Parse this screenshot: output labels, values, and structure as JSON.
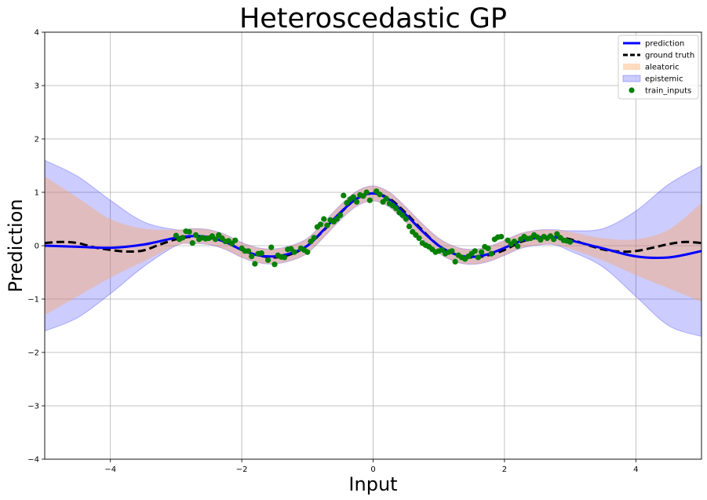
{
  "chart_data": {
    "type": "line",
    "title": "Heteroscedastic GP",
    "xlabel": "Input",
    "ylabel": "Prediction",
    "xlim": [
      -5,
      5
    ],
    "ylim": [
      -4,
      4
    ],
    "xticks": [
      -4,
      -2,
      0,
      2,
      4
    ],
    "xtick_labels": [
      "−4",
      "−2",
      "0",
      "2",
      "4"
    ],
    "yticks": [
      -4,
      -3,
      -2,
      -1,
      0,
      1,
      2,
      3,
      4
    ],
    "ytick_labels": [
      "−4",
      "−3",
      "−2",
      "−1",
      "0",
      "1",
      "2",
      "3",
      "4"
    ],
    "grid": true,
    "legend_position": "top-right",
    "legend": [
      "prediction",
      "ground truth",
      "aleatoric",
      "epistemic",
      "train_inputs"
    ],
    "colors": {
      "prediction": "#0000ff",
      "ground_truth": "#000000",
      "aleatoric": "#ffa560",
      "epistemic": "#0000ff",
      "train_inputs": "#008000"
    },
    "series": [
      {
        "name": "prediction",
        "x": [
          -5.0,
          -4.5,
          -4.0,
          -3.5,
          -3.0,
          -2.75,
          -2.5,
          -2.25,
          -2.0,
          -1.75,
          -1.5,
          -1.25,
          -1.0,
          -0.75,
          -0.5,
          -0.25,
          0.0,
          0.25,
          0.5,
          0.75,
          1.0,
          1.25,
          1.5,
          1.75,
          2.0,
          2.25,
          2.5,
          2.75,
          3.0,
          3.5,
          4.0,
          4.5,
          5.0
        ],
        "y": [
          0.0,
          -0.02,
          -0.04,
          0.02,
          0.15,
          0.18,
          0.16,
          0.07,
          -0.08,
          -0.18,
          -0.2,
          -0.14,
          0.0,
          0.3,
          0.62,
          0.88,
          0.98,
          0.86,
          0.58,
          0.27,
          0.0,
          -0.16,
          -0.21,
          -0.16,
          -0.04,
          0.09,
          0.15,
          0.16,
          0.1,
          -0.05,
          -0.2,
          -0.22,
          -0.1
        ]
      },
      {
        "name": "ground truth",
        "x": [
          -5.0,
          -4.75,
          -4.5,
          -4.25,
          -4.0,
          -3.75,
          -3.5,
          -3.25,
          -3.0,
          -2.75,
          -2.5,
          -2.25,
          -2.0,
          -1.75,
          -1.5,
          -1.25,
          -1.0,
          -0.75,
          -0.5,
          -0.25,
          0.0,
          0.25,
          0.5,
          0.75,
          1.0,
          1.25,
          1.5,
          1.75,
          2.0,
          2.25,
          2.5,
          2.75,
          3.0,
          3.25,
          3.5,
          3.75,
          4.0,
          4.25,
          4.5,
          4.75,
          5.0
        ],
        "y": [
          0.05,
          0.07,
          0.05,
          -0.03,
          -0.08,
          -0.11,
          -0.09,
          0.02,
          0.12,
          0.17,
          0.15,
          0.07,
          -0.08,
          -0.18,
          -0.22,
          -0.16,
          0.0,
          0.29,
          0.61,
          0.88,
          0.98,
          0.88,
          0.61,
          0.29,
          0.0,
          -0.16,
          -0.22,
          -0.18,
          -0.08,
          0.07,
          0.15,
          0.17,
          0.12,
          0.02,
          -0.07,
          -0.11,
          -0.1,
          -0.04,
          0.03,
          0.07,
          0.05
        ]
      },
      {
        "name": "aleatoric",
        "x": [
          -5.0,
          -4.5,
          -4.0,
          -3.5,
          -3.0,
          -2.75,
          -2.5,
          -2.25,
          -2.0,
          -1.75,
          -1.5,
          -1.25,
          -1.0,
          -0.75,
          -0.5,
          -0.25,
          0.0,
          0.25,
          0.5,
          0.75,
          1.0,
          1.25,
          1.5,
          1.75,
          2.0,
          2.25,
          2.5,
          2.75,
          3.0,
          3.5,
          4.0,
          4.5,
          5.0
        ],
        "upper": [
          1.3,
          0.9,
          0.5,
          0.32,
          0.3,
          0.32,
          0.3,
          0.21,
          0.06,
          -0.04,
          -0.06,
          0.0,
          0.14,
          0.44,
          0.76,
          1.02,
          1.12,
          1.0,
          0.72,
          0.41,
          0.14,
          -0.02,
          -0.07,
          -0.02,
          0.1,
          0.23,
          0.29,
          0.3,
          0.26,
          0.14,
          0.12,
          0.3,
          0.8
        ],
        "lower": [
          -1.3,
          -0.95,
          -0.6,
          -0.3,
          0.0,
          0.04,
          0.02,
          -0.07,
          -0.22,
          -0.32,
          -0.34,
          -0.28,
          -0.14,
          0.16,
          0.48,
          0.74,
          0.84,
          0.72,
          0.44,
          0.13,
          -0.14,
          -0.3,
          -0.35,
          -0.3,
          -0.18,
          -0.05,
          0.01,
          0.02,
          -0.06,
          -0.28,
          -0.55,
          -0.8,
          -1.05
        ]
      },
      {
        "name": "epistemic",
        "x": [
          -5.0,
          -4.5,
          -4.0,
          -3.5,
          -3.0,
          -2.75,
          -2.5,
          -2.25,
          -2.0,
          -1.75,
          -1.5,
          -1.25,
          -1.0,
          -0.75,
          -0.5,
          -0.25,
          0.0,
          0.25,
          0.5,
          0.75,
          1.0,
          1.25,
          1.5,
          1.75,
          2.0,
          2.25,
          2.5,
          2.75,
          3.0,
          3.5,
          4.0,
          4.5,
          5.0
        ],
        "upper": [
          1.6,
          1.3,
          0.85,
          0.45,
          0.3,
          0.32,
          0.3,
          0.21,
          0.06,
          -0.04,
          -0.06,
          0.0,
          0.14,
          0.44,
          0.76,
          1.02,
          1.12,
          1.0,
          0.72,
          0.41,
          0.14,
          -0.02,
          -0.07,
          -0.02,
          0.1,
          0.23,
          0.29,
          0.3,
          0.28,
          0.32,
          0.65,
          1.15,
          1.5
        ],
        "lower": [
          -1.6,
          -1.35,
          -0.9,
          -0.4,
          0.0,
          0.04,
          0.02,
          -0.07,
          -0.22,
          -0.32,
          -0.34,
          -0.28,
          -0.14,
          0.16,
          0.48,
          0.74,
          0.84,
          0.72,
          0.44,
          0.13,
          -0.14,
          -0.3,
          -0.35,
          -0.3,
          -0.18,
          -0.05,
          0.01,
          0.02,
          -0.1,
          -0.4,
          -0.95,
          -1.5,
          -1.7
        ]
      },
      {
        "name": "train_inputs",
        "x": [
          -3.0,
          -2.95,
          -2.9,
          -2.85,
          -2.8,
          -2.75,
          -2.7,
          -2.65,
          -2.6,
          -2.55,
          -2.5,
          -2.45,
          -2.4,
          -2.35,
          -2.3,
          -2.25,
          -2.2,
          -2.15,
          -2.1,
          -2.0,
          -1.95,
          -1.9,
          -1.85,
          -1.8,
          -1.75,
          -1.7,
          -1.6,
          -1.55,
          -1.5,
          -1.45,
          -1.4,
          -1.35,
          -1.3,
          -1.25,
          -1.2,
          -1.1,
          -1.05,
          -1.0,
          -0.95,
          -0.9,
          -0.85,
          -0.8,
          -0.75,
          -0.7,
          -0.65,
          -0.6,
          -0.55,
          -0.5,
          -0.45,
          -0.4,
          -0.35,
          -0.3,
          -0.25,
          -0.2,
          -0.15,
          -0.1,
          -0.05,
          0.05,
          0.1,
          0.15,
          0.2,
          0.25,
          0.3,
          0.35,
          0.4,
          0.45,
          0.5,
          0.55,
          0.6,
          0.65,
          0.7,
          0.75,
          0.8,
          0.85,
          0.9,
          0.95,
          1.0,
          1.05,
          1.1,
          1.15,
          1.2,
          1.25,
          1.3,
          1.35,
          1.4,
          1.45,
          1.5,
          1.55,
          1.6,
          1.65,
          1.7,
          1.75,
          1.8,
          1.85,
          1.9,
          1.95,
          2.05,
          2.1,
          2.15,
          2.2,
          2.25,
          2.3,
          2.35,
          2.4,
          2.45,
          2.5,
          2.55,
          2.6,
          2.65,
          2.7,
          2.75,
          2.8,
          2.85,
          2.9,
          2.95,
          3.0
        ],
        "y": [
          0.19,
          0.12,
          0.15,
          0.27,
          0.26,
          0.05,
          0.2,
          0.12,
          0.15,
          0.13,
          0.14,
          0.18,
          0.12,
          0.2,
          0.14,
          0.08,
          0.09,
          0.04,
          0.1,
          -0.05,
          -0.1,
          -0.1,
          -0.2,
          -0.34,
          -0.15,
          -0.14,
          -0.27,
          -0.03,
          -0.35,
          -0.18,
          -0.21,
          -0.22,
          -0.07,
          -0.06,
          -0.12,
          -0.05,
          -0.08,
          -0.12,
          0.08,
          0.15,
          0.35,
          0.4,
          0.5,
          0.38,
          0.48,
          0.45,
          0.5,
          0.57,
          0.94,
          0.8,
          0.87,
          0.91,
          0.82,
          0.95,
          0.93,
          1.0,
          0.85,
          1.02,
          0.96,
          0.82,
          0.88,
          0.79,
          0.75,
          0.7,
          0.62,
          0.57,
          0.5,
          0.36,
          0.26,
          0.2,
          0.14,
          0.05,
          0.01,
          -0.02,
          -0.07,
          -0.12,
          -0.1,
          -0.08,
          -0.15,
          -0.12,
          -0.1,
          -0.3,
          -0.18,
          -0.22,
          -0.25,
          -0.2,
          -0.15,
          -0.1,
          -0.22,
          -0.12,
          -0.02,
          -0.05,
          -0.15,
          0.12,
          0.16,
          0.17,
          0.1,
          0.03,
          0.08,
          -0.01,
          0.12,
          0.17,
          0.13,
          0.14,
          0.2,
          0.16,
          0.11,
          0.17,
          0.14,
          0.18,
          0.12,
          0.22,
          0.15,
          0.1,
          0.09,
          0.07
        ]
      }
    ]
  }
}
